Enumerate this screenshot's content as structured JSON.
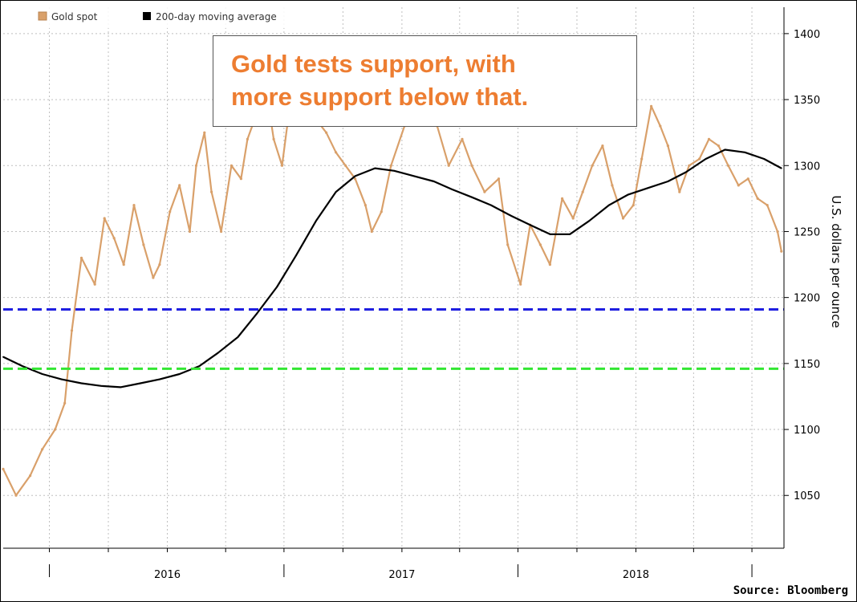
{
  "annotation": {
    "line1": "Gold tests support, with",
    "line2": "more support below that."
  },
  "source": "Source: Bloomberg",
  "colors": {
    "gold": "#D9A06A",
    "moving_average": "#000000",
    "support_upper": "#1F1FE0",
    "support_lower": "#33E633",
    "grid": "#BFBFBF",
    "annotation_text": "#ED7D31"
  },
  "chart_data": {
    "type": "line",
    "ylabel": "U.S. dollars per ounce",
    "ylim": [
      1010,
      1420
    ],
    "yticks": [
      1050,
      1100,
      1150,
      1200,
      1250,
      1300,
      1350,
      1400
    ],
    "xticks": [
      "2016",
      "2017",
      "2018"
    ],
    "xlim": [
      "2015-04-20",
      "2018-08-20"
    ],
    "grid": true,
    "legend_position": "top-left",
    "legend": [
      "Gold spot",
      "200-day moving average"
    ],
    "series": [
      {
        "name": "Gold spot",
        "x": [
          "2015-04-20",
          "2015-05-10",
          "2015-06-01",
          "2015-06-20",
          "2015-07-10",
          "2015-07-25",
          "2015-08-05",
          "2015-08-20",
          "2015-09-10",
          "2015-09-25",
          "2015-10-10",
          "2015-10-25",
          "2015-11-10",
          "2015-11-25",
          "2015-12-10",
          "2015-12-20",
          "2016-01-05",
          "2016-01-20",
          "2016-02-05",
          "2016-02-15",
          "2016-02-28",
          "2016-03-10",
          "2016-03-25",
          "2016-04-10",
          "2016-04-25",
          "2016-05-05",
          "2016-05-20",
          "2016-06-01",
          "2016-06-15",
          "2016-06-28",
          "2016-07-06",
          "2016-07-20",
          "2016-08-05",
          "2016-08-20",
          "2016-09-05",
          "2016-09-20",
          "2016-10-05",
          "2016-10-20",
          "2016-11-05",
          "2016-11-15",
          "2016-11-30",
          "2016-12-15",
          "2017-01-05",
          "2017-01-20",
          "2017-02-05",
          "2017-02-25",
          "2017-03-15",
          "2017-04-05",
          "2017-04-20",
          "2017-05-10",
          "2017-06-01",
          "2017-06-15",
          "2017-07-05",
          "2017-07-20",
          "2017-08-05",
          "2017-08-20",
          "2017-09-08",
          "2017-09-25",
          "2017-10-10",
          "2017-10-25",
          "2017-11-10",
          "2017-11-25",
          "2017-12-12",
          "2017-12-28",
          "2018-01-10",
          "2018-01-25",
          "2018-02-08",
          "2018-02-20",
          "2018-03-10",
          "2018-03-25",
          "2018-04-10",
          "2018-04-25",
          "2018-05-10",
          "2018-05-25",
          "2018-06-10",
          "2018-06-25",
          "2018-07-10",
          "2018-07-25",
          "2018-08-10",
          "2018-08-16"
        ],
        "values": [
          1070,
          1050,
          1065,
          1085,
          1100,
          1120,
          1175,
          1230,
          1210,
          1260,
          1245,
          1225,
          1270,
          1240,
          1215,
          1225,
          1265,
          1285,
          1250,
          1300,
          1325,
          1280,
          1250,
          1300,
          1290,
          1320,
          1340,
          1365,
          1320,
          1300,
          1330,
          1345,
          1335,
          1335,
          1325,
          1310,
          1300,
          1290,
          1270,
          1250,
          1265,
          1300,
          1330,
          1360,
          1345,
          1330,
          1300,
          1320,
          1300,
          1280,
          1290,
          1240,
          1210,
          1255,
          1240,
          1225,
          1275,
          1260,
          1280,
          1300,
          1315,
          1285,
          1260,
          1270,
          1305,
          1345,
          1330,
          1315,
          1280,
          1300,
          1305,
          1320,
          1315,
          1300,
          1285,
          1290,
          1275,
          1270,
          1250,
          1235
        ]
      },
      {
        "name": "200-day moving average",
        "x": [
          "2015-04-20",
          "2015-05-20",
          "2015-06-20",
          "2015-07-20",
          "2015-08-20",
          "2015-09-20",
          "2015-10-20",
          "2015-11-20",
          "2015-12-20",
          "2016-01-20",
          "2016-02-20",
          "2016-03-20",
          "2016-04-20",
          "2016-05-20",
          "2016-06-20",
          "2016-07-20",
          "2016-08-20",
          "2016-09-20",
          "2016-10-20",
          "2016-11-20",
          "2016-12-20",
          "2017-01-20",
          "2017-02-20",
          "2017-03-20",
          "2017-04-20",
          "2017-05-20",
          "2017-06-20",
          "2017-07-20",
          "2017-08-20",
          "2017-09-20",
          "2017-10-20",
          "2017-11-20",
          "2017-12-20",
          "2018-01-20",
          "2018-02-20",
          "2018-03-20",
          "2018-04-20",
          "2018-05-20",
          "2018-06-20",
          "2018-07-20",
          "2018-08-16"
        ],
        "values": [
          1155,
          1148,
          1142,
          1138,
          1135,
          1133,
          1132,
          1135,
          1138,
          1142,
          1148,
          1158,
          1170,
          1188,
          1208,
          1232,
          1258,
          1280,
          1292,
          1298,
          1296,
          1292,
          1288,
          1282,
          1276,
          1270,
          1262,
          1255,
          1248,
          1248,
          1258,
          1270,
          1278,
          1283,
          1288,
          1295,
          1305,
          1312,
          1310,
          1305,
          1298
        ]
      }
    ],
    "reference_lines": [
      {
        "value": 1191,
        "style": "dashed",
        "color": "#1F1FE0"
      },
      {
        "value": 1146,
        "style": "dashed",
        "color": "#33E633"
      }
    ]
  }
}
